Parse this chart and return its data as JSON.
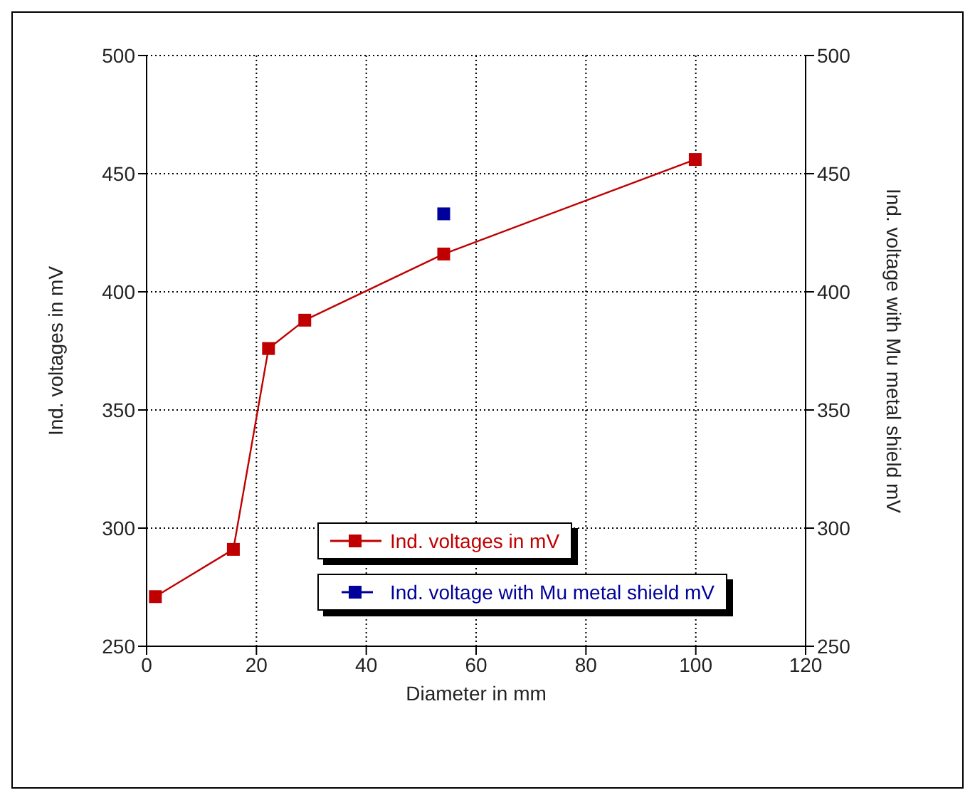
{
  "chart_data": {
    "type": "line",
    "xlabel": "Diameter in mm",
    "ylabel": "Ind. voltages in mV",
    "y2label": "Ind. voltage with Mu metal shield mV",
    "series": [
      {
        "name": "Ind. voltages in mV",
        "color": "#c00000",
        "x": [
          1.6,
          15.8,
          22.2,
          28.8,
          54.1,
          99.9
        ],
        "values": [
          271,
          291,
          376,
          388,
          416,
          456
        ]
      },
      {
        "name": "Ind. voltage with Mu metal shield mV",
        "color": "#00009c",
        "type": "scatter",
        "axis": "y2",
        "x": [
          54.1
        ],
        "values": [
          433
        ]
      }
    ],
    "xlim": [
      0,
      120
    ],
    "xticks": [
      0,
      20,
      40,
      60,
      80,
      100,
      120
    ],
    "ylim": [
      250,
      500
    ],
    "yticks": [
      250,
      300,
      350,
      400,
      450,
      500
    ],
    "y2lim": [
      250,
      500
    ],
    "y2ticks": [
      250,
      300,
      350,
      400,
      450,
      500
    ],
    "grid": true,
    "legend": "bottom right",
    "marker": "square",
    "line_style": "solid"
  }
}
